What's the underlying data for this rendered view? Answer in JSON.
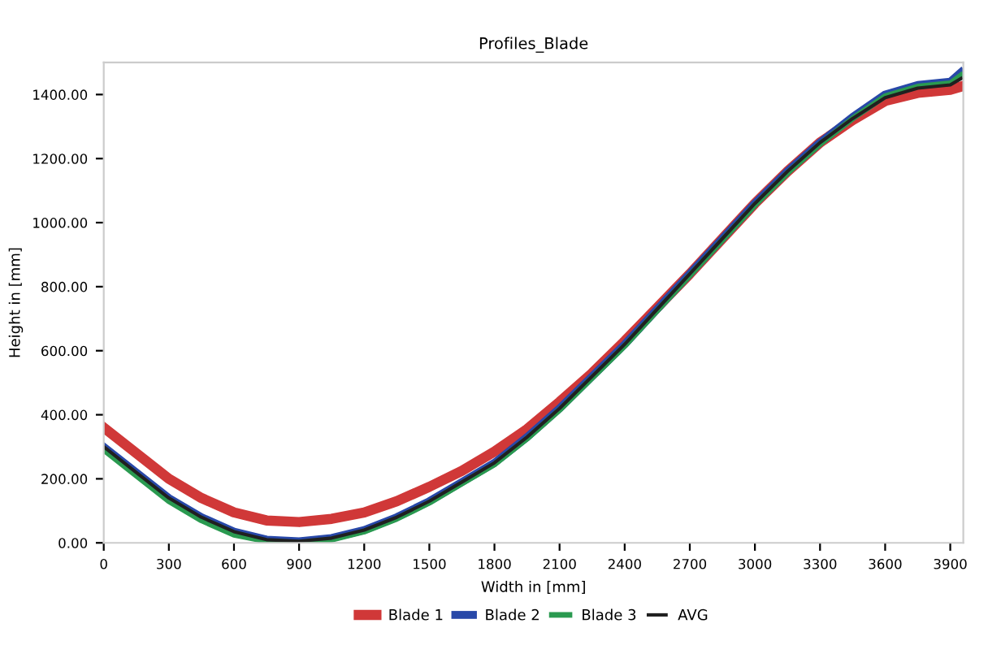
{
  "chart_data": {
    "type": "line",
    "title": "Profiles_Blade",
    "xlabel": "Width in [mm]",
    "ylabel": "Height in [mm]",
    "x": [
      0,
      150,
      300,
      450,
      600,
      750,
      900,
      1050,
      1200,
      1350,
      1500,
      1650,
      1800,
      1950,
      2100,
      2250,
      2400,
      2550,
      2700,
      2850,
      3000,
      3150,
      3300,
      3450,
      3600,
      3750,
      3900,
      3950
    ],
    "series": [
      {
        "name": "Blade 1",
        "color": "#d03838",
        "values": [
          360,
          280,
          200,
          140,
          95,
          70,
          65,
          75,
          95,
          130,
          175,
          225,
          285,
          355,
          440,
          530,
          630,
          735,
          840,
          950,
          1060,
          1160,
          1250,
          1320,
          1380,
          1405,
          1415,
          1425
        ]
      },
      {
        "name": "Blade 2",
        "color": "#2848a8",
        "values": [
          300,
          220,
          140,
          80,
          35,
          10,
          5,
          15,
          40,
          80,
          130,
          190,
          250,
          330,
          420,
          520,
          620,
          730,
          840,
          950,
          1060,
          1160,
          1250,
          1330,
          1400,
          1430,
          1440,
          1470
        ]
      },
      {
        "name": "Blade 3",
        "color": "#2a9a50",
        "values": [
          290,
          210,
          130,
          70,
          25,
          5,
          0,
          10,
          35,
          75,
          125,
          185,
          245,
          325,
          415,
          515,
          615,
          725,
          835,
          945,
          1055,
          1155,
          1245,
          1325,
          1395,
          1425,
          1435,
          1460
        ]
      },
      {
        "name": "AVG",
        "color": "#202020",
        "values": [
          300,
          220,
          140,
          80,
          35,
          10,
          5,
          15,
          40,
          80,
          130,
          190,
          250,
          330,
          420,
          520,
          620,
          730,
          840,
          950,
          1060,
          1160,
          1250,
          1325,
          1390,
          1420,
          1430,
          1450
        ]
      }
    ],
    "xlim": [
      0,
      3960
    ],
    "xticks": [
      0,
      300,
      600,
      900,
      1200,
      1500,
      1800,
      2100,
      2400,
      2700,
      3000,
      3300,
      3600,
      3900
    ],
    "ylim": [
      0,
      1500
    ],
    "yticks": [
      {
        "value": 0,
        "label": "0.00"
      },
      {
        "value": 200,
        "label": "200.00"
      },
      {
        "value": 400,
        "label": "400.00"
      },
      {
        "value": 600,
        "label": "600.00"
      },
      {
        "value": 800,
        "label": "800.00"
      },
      {
        "value": 1000,
        "label": "1000.00"
      },
      {
        "value": 1200,
        "label": "1200.00"
      },
      {
        "value": 1400,
        "label": "1400.00"
      }
    ],
    "legend": "bottom",
    "grid": false,
    "line_style": "solid"
  }
}
